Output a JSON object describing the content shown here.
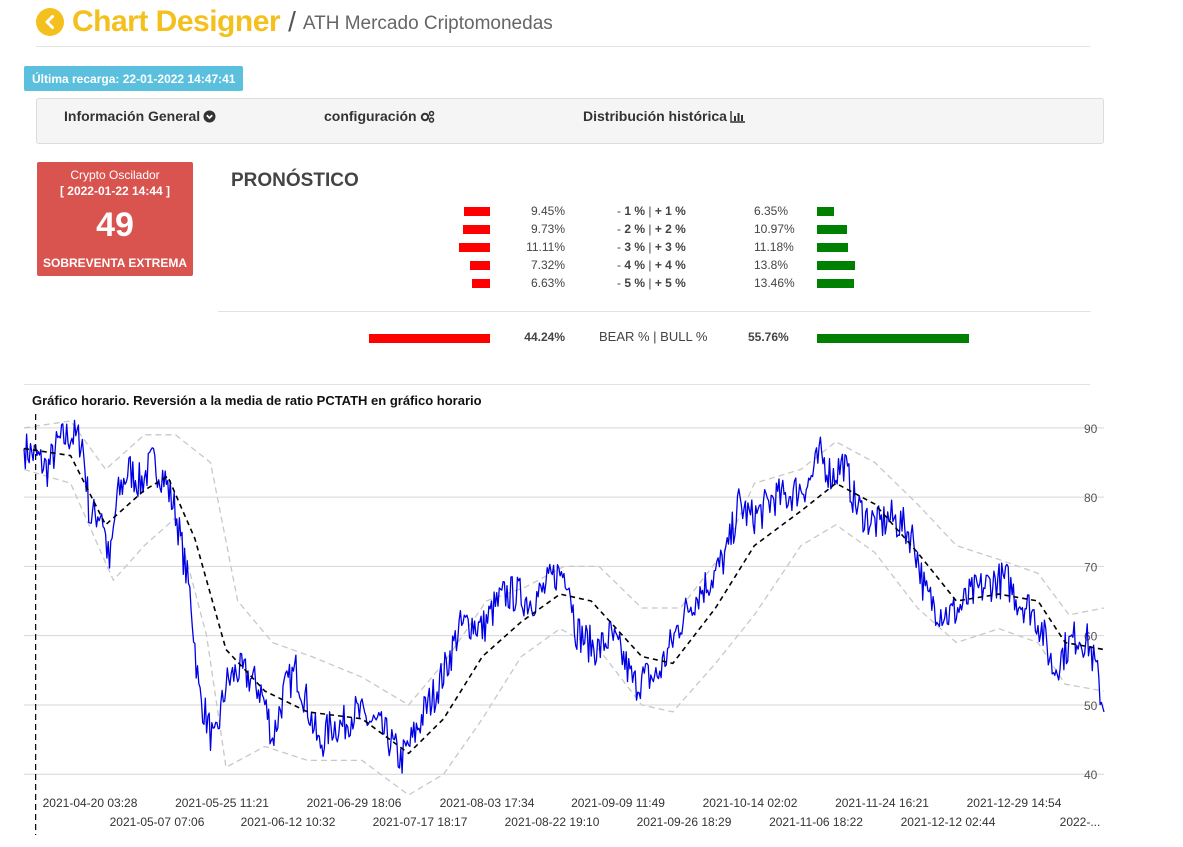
{
  "header": {
    "app_title": "Chart Designer",
    "separator": "/",
    "subtitle": "ATH Mercado Criptomonedas",
    "back_icon": "chevron-left-circle-icon",
    "accent_color": "#f3c01d"
  },
  "reload": {
    "label": "Última recarga:",
    "timestamp": "22-01-2022 14:47:41"
  },
  "tabs": [
    {
      "label": "Información General",
      "icon": "chevron-down-circle-icon"
    },
    {
      "label": "configuración",
      "icon": "gears-icon"
    },
    {
      "label": "Distribución histórica",
      "icon": "bar-chart-icon"
    }
  ],
  "oscillator": {
    "title": "Crypto Oscilador",
    "date": "[ 2022-01-22 14:44 ]",
    "value": "49",
    "status": "SOBREVENTA EXTREMA",
    "color": "#d9534f"
  },
  "forecast": {
    "title": "PRONÓSTICO",
    "rows": [
      {
        "bear": 9.45,
        "bear_label": "9.45%",
        "range_prefix": "- ",
        "range_neg": "1 %",
        "range_sep": " | ",
        "range_pos": "+ 1 %",
        "bull": 6.35,
        "bull_label": "6.35%"
      },
      {
        "bear": 9.73,
        "bear_label": "9.73%",
        "range_prefix": "- ",
        "range_neg": "2 %",
        "range_sep": " | ",
        "range_pos": "+ 2 %",
        "bull": 10.97,
        "bull_label": "10.97%"
      },
      {
        "bear": 11.11,
        "bear_label": "11.11%",
        "range_prefix": "- ",
        "range_neg": "3 %",
        "range_sep": " | ",
        "range_pos": "+ 3 %",
        "bull": 11.18,
        "bull_label": "11.18%"
      },
      {
        "bear": 7.32,
        "bear_label": "7.32%",
        "range_prefix": "- ",
        "range_neg": "4 %",
        "range_sep": " | ",
        "range_pos": "+ 4 %",
        "bull": 13.8,
        "bull_label": "13.8%"
      },
      {
        "bear": 6.63,
        "bear_label": "6.63%",
        "range_prefix": "- ",
        "range_neg": "5 %",
        "range_sep": " | ",
        "range_pos": "+ 5 %",
        "bull": 13.46,
        "bull_label": "13.46%"
      }
    ],
    "total": {
      "bear": 44.24,
      "bear_label": "44.24%",
      "label": "BEAR % | BULL %",
      "bull": 55.76,
      "bull_label": "55.76%"
    },
    "bear_color": "#ff0000",
    "bull_color": "#008000"
  },
  "chart_title": "Gráfico horario. Reversión a la media de ratio PCTATH en gráfico horario",
  "chart_data": {
    "type": "line",
    "title": "Gráfico horario. Reversión a la media de ratio PCTATH en gráfico horario",
    "x_start": "2021-04-19",
    "x_end": "2022-01-22",
    "ylim": [
      37,
      92
    ],
    "yticks": [
      40,
      50,
      60,
      70,
      80,
      90
    ],
    "grid": true,
    "x_ticks_row1": [
      "2021-04-20 03:28",
      "2021-05-25 11:21",
      "2021-06-29 18:06",
      "2021-08-03 17:34",
      "2021-09-09 11:49",
      "2021-10-14 02:02",
      "2021-11-24 16:21",
      "2021-12-29 14:54"
    ],
    "x_ticks_row2": [
      "2021-05-07 07:06",
      "2021-06-12 10:32",
      "2021-07-17 18:17",
      "2021-08-22 19:10",
      "2021-09-26 18:29",
      "2021-11-06 18:22",
      "2021-12-12 02:44",
      "2022-..."
    ],
    "vertical_marker": "2021-04-22",
    "series": [
      {
        "style": "solid-blue",
        "color": "#0000e6",
        "points": [
          [
            "2021-04-19",
            87
          ],
          [
            "2021-04-22",
            86
          ],
          [
            "2021-04-25",
            84
          ],
          [
            "2021-04-28",
            88
          ],
          [
            "2021-05-01",
            89
          ],
          [
            "2021-05-04",
            88
          ],
          [
            "2021-05-06",
            77
          ],
          [
            "2021-05-09",
            78
          ],
          [
            "2021-05-11",
            70
          ],
          [
            "2021-05-13",
            80
          ],
          [
            "2021-05-16",
            84
          ],
          [
            "2021-05-19",
            82
          ],
          [
            "2021-05-22",
            85
          ],
          [
            "2021-05-25",
            83
          ],
          [
            "2021-05-28",
            78
          ],
          [
            "2021-06-01",
            65
          ],
          [
            "2021-06-03",
            52
          ],
          [
            "2021-06-05",
            48
          ],
          [
            "2021-06-07",
            44
          ],
          [
            "2021-06-10",
            53
          ],
          [
            "2021-06-13",
            55
          ],
          [
            "2021-06-16",
            54
          ],
          [
            "2021-06-19",
            52
          ],
          [
            "2021-06-21",
            48
          ],
          [
            "2021-06-22",
            45
          ],
          [
            "2021-06-25",
            52
          ],
          [
            "2021-06-28",
            55
          ],
          [
            "2021-07-01",
            50
          ],
          [
            "2021-07-04",
            44
          ],
          [
            "2021-07-07",
            47
          ],
          [
            "2021-07-10",
            47
          ],
          [
            "2021-07-13",
            49
          ],
          [
            "2021-07-16",
            48
          ],
          [
            "2021-07-19",
            47
          ],
          [
            "2021-07-22",
            45
          ],
          [
            "2021-07-25",
            42
          ],
          [
            "2021-07-28",
            45
          ],
          [
            "2021-07-31",
            49
          ],
          [
            "2021-08-03",
            52
          ],
          [
            "2021-08-06",
            56
          ],
          [
            "2021-08-09",
            61
          ],
          [
            "2021-08-12",
            62
          ],
          [
            "2021-08-15",
            61
          ],
          [
            "2021-08-18",
            64
          ],
          [
            "2021-08-21",
            66
          ],
          [
            "2021-08-24",
            66
          ],
          [
            "2021-08-27",
            65
          ],
          [
            "2021-08-30",
            66
          ],
          [
            "2021-09-03",
            69
          ],
          [
            "2021-09-06",
            69
          ],
          [
            "2021-09-08",
            61
          ],
          [
            "2021-09-11",
            59
          ],
          [
            "2021-09-14",
            58
          ],
          [
            "2021-09-17",
            60
          ],
          [
            "2021-09-20",
            57
          ],
          [
            "2021-09-23",
            53
          ],
          [
            "2021-09-26",
            54
          ],
          [
            "2021-09-29",
            54
          ],
          [
            "2021-10-02",
            58
          ],
          [
            "2021-10-05",
            62
          ],
          [
            "2021-10-08",
            65
          ],
          [
            "2021-10-11",
            67
          ],
          [
            "2021-10-14",
            69
          ],
          [
            "2021-10-17",
            72
          ],
          [
            "2021-10-20",
            79
          ],
          [
            "2021-10-23",
            77
          ],
          [
            "2021-10-26",
            78
          ],
          [
            "2021-10-29",
            80
          ],
          [
            "2021-11-01",
            80
          ],
          [
            "2021-11-04",
            81
          ],
          [
            "2021-11-07",
            82
          ],
          [
            "2021-11-10",
            86
          ],
          [
            "2021-11-13",
            83
          ],
          [
            "2021-11-16",
            85
          ],
          [
            "2021-11-19",
            79
          ],
          [
            "2021-11-22",
            77
          ],
          [
            "2021-11-25",
            76
          ],
          [
            "2021-11-28",
            77
          ],
          [
            "2021-12-01",
            76
          ],
          [
            "2021-12-04",
            74
          ],
          [
            "2021-12-07",
            66
          ],
          [
            "2021-12-10",
            64
          ],
          [
            "2021-12-13",
            63
          ],
          [
            "2021-12-16",
            64
          ],
          [
            "2021-12-19",
            66
          ],
          [
            "2021-12-22",
            67
          ],
          [
            "2021-12-25",
            68
          ],
          [
            "2021-12-28",
            68
          ],
          [
            "2021-12-31",
            65
          ],
          [
            "2022-01-03",
            64
          ],
          [
            "2022-01-06",
            61
          ],
          [
            "2022-01-09",
            55
          ],
          [
            "2022-01-12",
            58
          ],
          [
            "2022-01-15",
            60
          ],
          [
            "2022-01-18",
            59
          ],
          [
            "2022-01-20",
            55
          ],
          [
            "2022-01-22",
            49
          ]
        ]
      },
      {
        "style": "dashed-black-mean",
        "color": "#000000",
        "points": [
          [
            "2021-04-19",
            87
          ],
          [
            "2021-05-01",
            86
          ],
          [
            "2021-05-10",
            76
          ],
          [
            "2021-05-20",
            81
          ],
          [
            "2021-05-26",
            83
          ],
          [
            "2021-06-02",
            74
          ],
          [
            "2021-06-10",
            58
          ],
          [
            "2021-06-20",
            52
          ],
          [
            "2021-07-01",
            49
          ],
          [
            "2021-07-15",
            48
          ],
          [
            "2021-07-27",
            43
          ],
          [
            "2021-08-05",
            48
          ],
          [
            "2021-08-15",
            57
          ],
          [
            "2021-08-25",
            62
          ],
          [
            "2021-09-04",
            66
          ],
          [
            "2021-09-12",
            65
          ],
          [
            "2021-09-25",
            57
          ],
          [
            "2021-10-03",
            56
          ],
          [
            "2021-10-14",
            64
          ],
          [
            "2021-10-24",
            73
          ],
          [
            "2021-11-05",
            78
          ],
          [
            "2021-11-14",
            82
          ],
          [
            "2021-11-24",
            79
          ],
          [
            "2021-12-05",
            72
          ],
          [
            "2021-12-15",
            65
          ],
          [
            "2021-12-26",
            66
          ],
          [
            "2022-01-05",
            65
          ],
          [
            "2022-01-12",
            59
          ],
          [
            "2022-01-22",
            58
          ]
        ]
      },
      {
        "style": "dashed-grey-upper-band",
        "color": "#c8c8c8",
        "points": [
          [
            "2021-04-19",
            90
          ],
          [
            "2021-05-01",
            91
          ],
          [
            "2021-05-10",
            84
          ],
          [
            "2021-05-20",
            89
          ],
          [
            "2021-05-28",
            89
          ],
          [
            "2021-06-06",
            85
          ],
          [
            "2021-06-13",
            65
          ],
          [
            "2021-06-22",
            59
          ],
          [
            "2021-07-02",
            57
          ],
          [
            "2021-07-15",
            54
          ],
          [
            "2021-07-27",
            50
          ],
          [
            "2021-08-05",
            56
          ],
          [
            "2021-08-16",
            65
          ],
          [
            "2021-08-26",
            67
          ],
          [
            "2021-09-05",
            70
          ],
          [
            "2021-09-14",
            70
          ],
          [
            "2021-09-25",
            64
          ],
          [
            "2021-10-05",
            64
          ],
          [
            "2021-10-16",
            72
          ],
          [
            "2021-10-24",
            82
          ],
          [
            "2021-11-05",
            84
          ],
          [
            "2021-11-14",
            88
          ],
          [
            "2021-11-24",
            85
          ],
          [
            "2021-12-05",
            79
          ],
          [
            "2021-12-15",
            73
          ],
          [
            "2021-12-26",
            71
          ],
          [
            "2022-01-05",
            69
          ],
          [
            "2022-01-13",
            63
          ],
          [
            "2022-01-22",
            64
          ]
        ]
      },
      {
        "style": "dashed-grey-lower-band",
        "color": "#c8c8c8",
        "points": [
          [
            "2021-04-19",
            84
          ],
          [
            "2021-05-01",
            82
          ],
          [
            "2021-05-12",
            68
          ],
          [
            "2021-05-20",
            73
          ],
          [
            "2021-05-28",
            77
          ],
          [
            "2021-06-05",
            60
          ],
          [
            "2021-06-10",
            41
          ],
          [
            "2021-06-20",
            44
          ],
          [
            "2021-07-01",
            42
          ],
          [
            "2021-07-15",
            42
          ],
          [
            "2021-07-27",
            37
          ],
          [
            "2021-08-05",
            40
          ],
          [
            "2021-08-15",
            48
          ],
          [
            "2021-08-25",
            57
          ],
          [
            "2021-09-04",
            61
          ],
          [
            "2021-09-14",
            58
          ],
          [
            "2021-09-25",
            50
          ],
          [
            "2021-10-03",
            49
          ],
          [
            "2021-10-14",
            56
          ],
          [
            "2021-10-24",
            63
          ],
          [
            "2021-11-05",
            73
          ],
          [
            "2021-11-14",
            76
          ],
          [
            "2021-11-24",
            72
          ],
          [
            "2021-12-05",
            64
          ],
          [
            "2021-12-15",
            59
          ],
          [
            "2021-12-26",
            61
          ],
          [
            "2022-01-05",
            59
          ],
          [
            "2022-01-12",
            53
          ],
          [
            "2022-01-22",
            52
          ]
        ]
      }
    ]
  }
}
